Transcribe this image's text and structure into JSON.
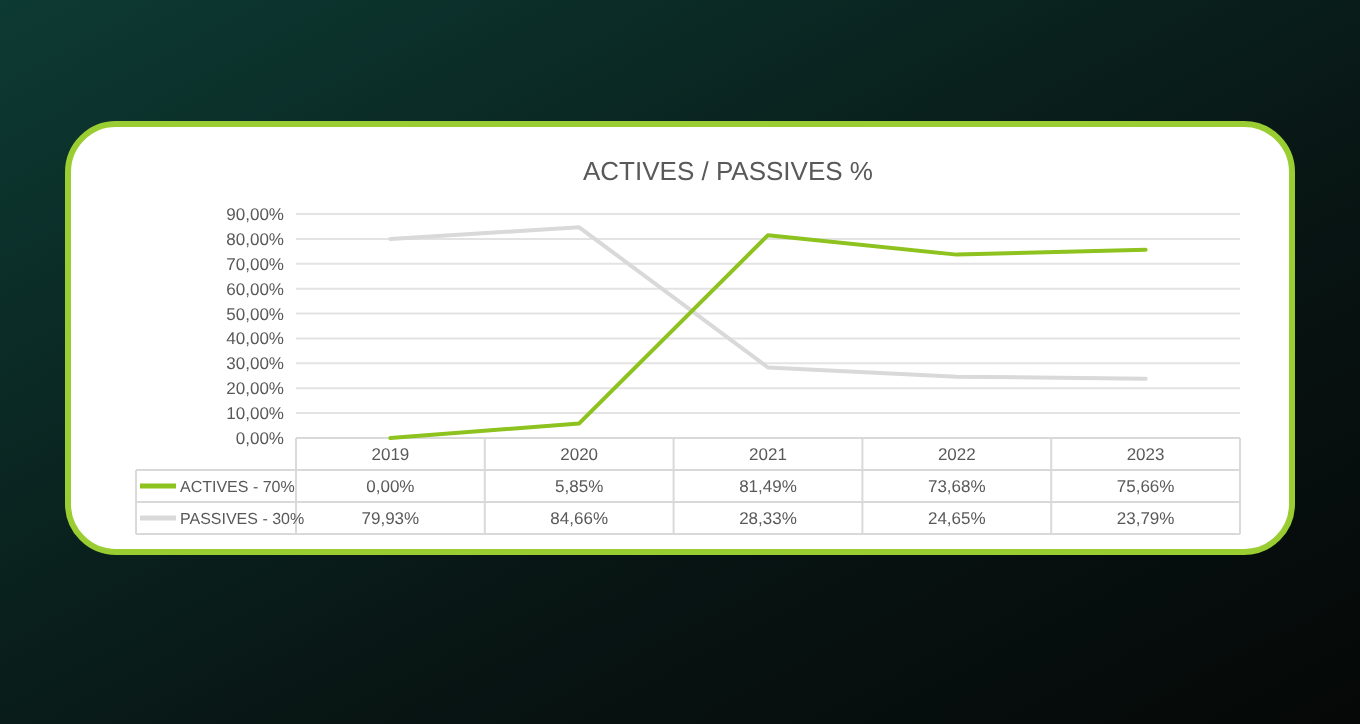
{
  "chart_data": {
    "type": "line",
    "title": "ACTIVES / PASSIVES %",
    "categories": [
      "2019",
      "2020",
      "2021",
      "2022",
      "2023"
    ],
    "series": [
      {
        "name": "ACTIVES - 70%",
        "color": "#8dc21f",
        "values": [
          0,
          5.85,
          81.49,
          73.68,
          75.66
        ],
        "value_labels": [
          "0,00%",
          "5,85%",
          "81,49%",
          "73,68%",
          "75,66%"
        ]
      },
      {
        "name": "PASSIVES - 30%",
        "color": "#d9d9d9",
        "values": [
          79.93,
          84.66,
          28.33,
          24.65,
          23.79
        ],
        "value_labels": [
          "79,93%",
          "84,66%",
          "28,33%",
          "24,65%",
          "23,79%"
        ]
      }
    ],
    "ylim": [
      0,
      90
    ],
    "yticks": [
      {
        "value": 0,
        "label": "0,00%"
      },
      {
        "value": 10,
        "label": "10,00%"
      },
      {
        "value": 20,
        "label": "20,00%"
      },
      {
        "value": 30,
        "label": "30,00%"
      },
      {
        "value": 40,
        "label": "40,00%"
      },
      {
        "value": 50,
        "label": "50,00%"
      },
      {
        "value": 60,
        "label": "60,00%"
      },
      {
        "value": 70,
        "label": "70,00%"
      },
      {
        "value": 80,
        "label": "80,00%"
      },
      {
        "value": 90,
        "label": "90,00%"
      }
    ],
    "grid": "y",
    "legend": "bottom",
    "marker": "none",
    "line_style": "solid"
  }
}
